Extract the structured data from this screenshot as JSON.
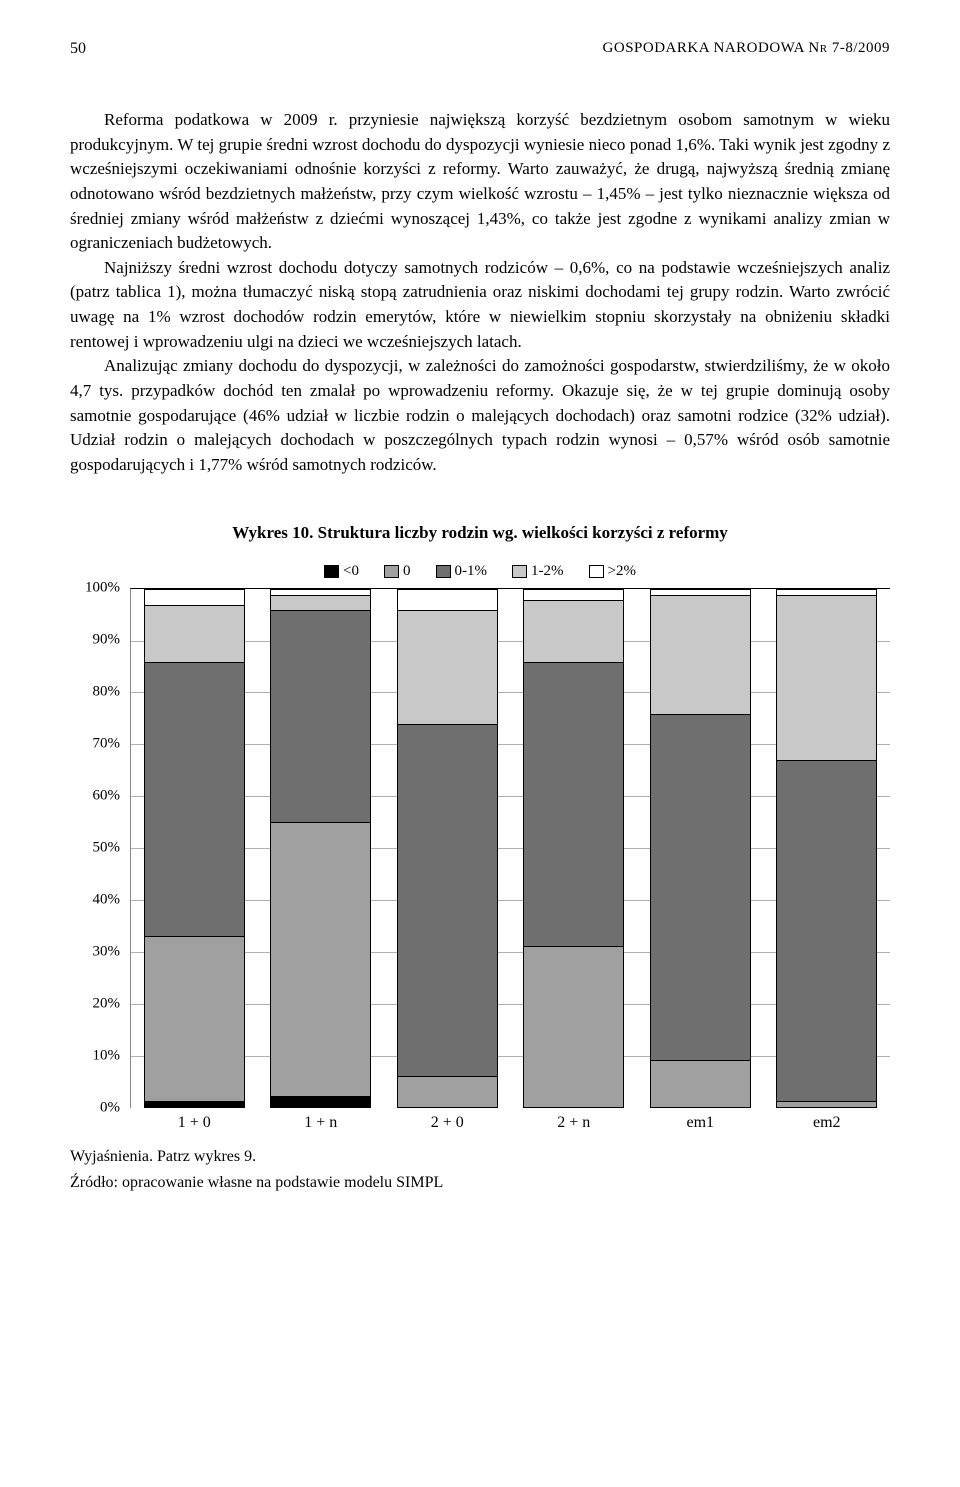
{
  "header": {
    "page_number": "50",
    "journal": "GOSPODARKA NARODOWA Nr 7-8/2009"
  },
  "paragraphs": {
    "p1": "Reforma podatkowa w 2009 r. przyniesie największą korzyść bezdzietnym osobom samotnym w wieku produkcyjnym. W tej grupie średni wzrost dochodu do dyspozycji wyniesie nieco ponad 1,6%. Taki wynik jest zgodny z wcześniejszymi oczekiwaniami odnośnie korzyści z reformy. Warto zauważyć, że drugą, najwyższą średnią zmianę odnotowano wśród bezdzietnych małżeństw, przy czym wielkość wzrostu – 1,45% – jest tylko nieznacznie większa od średniej zmiany wśród małżeństw z dziećmi wynoszącej 1,43%, co także jest zgodne z wynikami analizy zmian w ograniczeniach budżetowych.",
    "p2": "Najniższy średni wzrost dochodu dotyczy samotnych rodziców – 0,6%, co na podstawie wcześniejszych analiz (patrz tablica 1), można tłumaczyć niską stopą zatrudnienia oraz niskimi dochodami tej grupy rodzin. Warto zwrócić uwagę na 1% wzrost dochodów rodzin emerytów, które w niewielkim stopniu skorzystały na obniżeniu składki rentowej i wprowadzeniu ulgi na dzieci we wcześniejszych latach.",
    "p3": "Analizując zmiany dochodu do dyspozycji, w zależności do zamożności gospodarstw, stwierdziliśmy, że w około 4,7 tys. przypadków dochód ten zmalał po wprowadzeniu reformy. Okazuje się, że w tej grupie dominują osoby samotnie gospodarujące (46% udział w liczbie rodzin o malejących dochodach) oraz samotni rodzice (32% udział). Udział rodzin o malejących dochodach w poszczególnych typach rodzin wynosi – 0,57% wśród osób samotnie gospodarujących i 1,77% wśród samotnych rodziców."
  },
  "chart": {
    "title": "Wykres 10. Struktura liczby rodzin wg. wielkości korzyści z reformy",
    "type": "stacked-bar-100",
    "categories": [
      "1 + 0",
      "1 + n",
      "2 + 0",
      "2 + n",
      "em1",
      "em2"
    ],
    "series": [
      {
        "name": "<0",
        "color": "#000000",
        "values": [
          1,
          2,
          0,
          0,
          0,
          0
        ]
      },
      {
        "name": "0",
        "color": "#a0a0a0",
        "values": [
          32,
          53,
          6,
          31,
          9,
          1
        ]
      },
      {
        "name": "0-1%",
        "color": "#6f6f6f",
        "values": [
          53,
          41,
          68,
          55,
          67,
          66
        ]
      },
      {
        "name": "1-2%",
        "color": "#c8c8c8",
        "values": [
          11,
          3,
          22,
          12,
          23,
          32
        ]
      },
      {
        "name": ">2%",
        "color": "#ffffff",
        "values": [
          3,
          1,
          4,
          2,
          1,
          1
        ]
      }
    ],
    "ylim": [
      0,
      100
    ],
    "ytick_step": 10,
    "ytick_suffix": "%",
    "background_color": "#ffffff",
    "grid_color": "#b0b0b0",
    "bar_border_color": "#000000",
    "axis_label_fontsize": 15
  },
  "footnotes": {
    "explain": "Wyjaśnienia. Patrz wykres 9.",
    "source": "Źródło: opracowanie własne na podstawie modelu SIMPL"
  }
}
